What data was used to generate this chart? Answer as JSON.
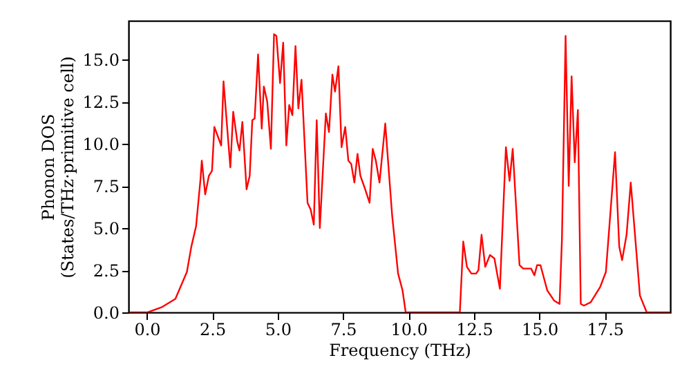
{
  "chart_data": {
    "type": "line",
    "xlabel": "Frequency (THz)",
    "ylabel": "Phonon DOS\n(States/THz·primitive cell)",
    "x": [
      -0.67,
      0.03,
      0.56,
      1.09,
      1.53,
      1.7,
      1.88,
      2.05,
      2.1,
      2.23,
      2.37,
      2.49,
      2.58,
      2.84,
      2.93,
      3.19,
      3.3,
      3.46,
      3.54,
      3.65,
      3.81,
      3.93,
      4.03,
      4.12,
      4.25,
      4.39,
      4.47,
      4.6,
      4.74,
      4.86,
      4.95,
      5.09,
      5.21,
      5.33,
      5.44,
      5.56,
      5.68,
      5.79,
      5.91,
      6.14,
      6.26,
      6.38,
      6.49,
      6.61,
      6.84,
      6.96,
      7.09,
      7.19,
      7.32,
      7.44,
      7.58,
      7.7,
      7.81,
      7.93,
      8.05,
      8.16,
      8.32,
      8.51,
      8.63,
      8.75,
      8.89,
      9.11,
      9.37,
      9.6,
      9.77,
      9.89,
      11.96,
      12.09,
      12.23,
      12.4,
      12.58,
      12.67,
      12.79,
      12.93,
      13.11,
      13.28,
      13.49,
      13.72,
      13.86,
      13.98,
      14.24,
      14.38,
      14.68,
      14.81,
      14.91,
      15.04,
      15.3,
      15.56,
      15.77,
      15.86,
      16.0,
      16.12,
      16.23,
      16.35,
      16.47,
      16.58,
      16.7,
      16.96,
      17.32,
      17.54,
      17.89,
      18.05,
      18.16,
      18.33,
      18.49,
      18.84,
      19.1,
      20.0
    ],
    "series": [
      {
        "color": "#ff0000",
        "values": [
          0,
          0,
          0.3,
          0.8,
          2.4,
          3.9,
          5.1,
          7.9,
          9.0,
          7.0,
          8.1,
          8.4,
          11.0,
          9.9,
          13.7,
          8.6,
          11.9,
          10.1,
          9.6,
          11.3,
          7.3,
          8.1,
          11.4,
          11.5,
          15.3,
          10.9,
          13.4,
          12.5,
          9.7,
          16.5,
          16.4,
          13.6,
          16.0,
          9.9,
          12.3,
          11.7,
          15.8,
          12.1,
          13.8,
          6.5,
          6.1,
          5.2,
          11.4,
          5.0,
          11.8,
          10.7,
          14.1,
          13.1,
          14.6,
          9.8,
          11.0,
          9.0,
          8.8,
          7.7,
          9.4,
          8.1,
          7.4,
          6.5,
          9.7,
          9.0,
          7.7,
          11.2,
          5.8,
          2.3,
          1.3,
          0,
          0,
          4.2,
          2.7,
          2.3,
          2.3,
          2.5,
          4.6,
          2.7,
          3.4,
          3.2,
          1.4,
          9.8,
          7.8,
          9.7,
          2.8,
          2.6,
          2.6,
          2.2,
          2.8,
          2.8,
          1.3,
          0.7,
          0.5,
          4.3,
          16.4,
          7.5,
          14.0,
          8.9,
          12.0,
          0.5,
          0.4,
          0.6,
          1.5,
          2.4,
          9.5,
          3.9,
          3.1,
          4.6,
          7.7,
          1.0,
          0,
          0
        ]
      }
    ],
    "xlim": [
      -0.7,
      20.0
    ],
    "xticks": [
      {
        "value": 0,
        "label": "0.0"
      },
      {
        "value": 2.5,
        "label": "2.5"
      },
      {
        "value": 5,
        "label": "5.0"
      },
      {
        "value": 7.5,
        "label": "7.5"
      },
      {
        "value": 10,
        "label": "10.0"
      },
      {
        "value": 12.5,
        "label": "12.5"
      },
      {
        "value": 15,
        "label": "15.0"
      },
      {
        "value": 17.5,
        "label": "17.5"
      }
    ],
    "ylim": [
      0,
      17.3
    ],
    "yticks": [
      {
        "value": 0,
        "label": "0.0"
      },
      {
        "value": 2.5,
        "label": "2.5"
      },
      {
        "value": 5,
        "label": "5.0"
      },
      {
        "value": 7.5,
        "label": "7.5"
      },
      {
        "value": 10,
        "label": "10.0"
      },
      {
        "value": 12.5,
        "label": "12.5"
      },
      {
        "value": 15,
        "label": "15.0"
      }
    ],
    "grid": false,
    "line_style": "solid"
  }
}
